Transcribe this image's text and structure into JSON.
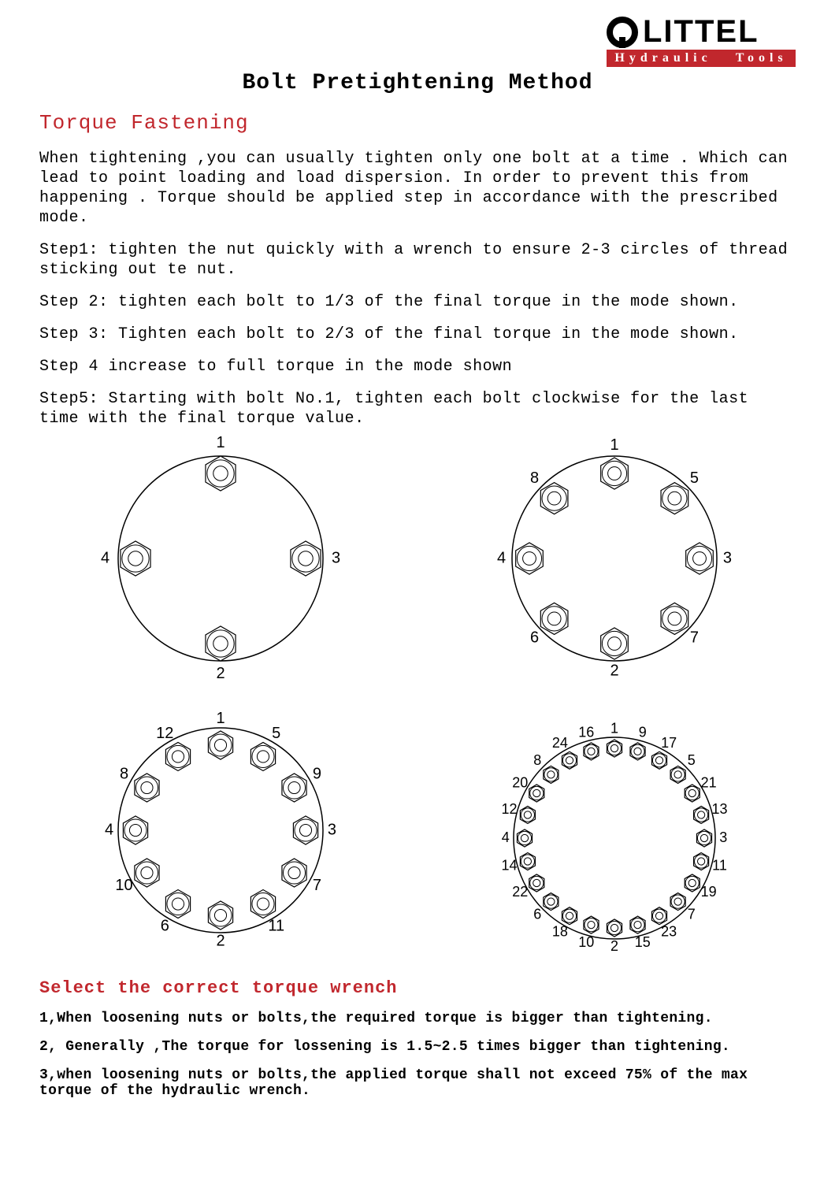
{
  "logo": {
    "brand": "LITTEL",
    "subtitle_left": "Hydraulic",
    "subtitle_right": "Tools",
    "icon_color": "#000000",
    "sub_bg": "#c1272d"
  },
  "title": "Bolt Pretightening Method",
  "section1_title": "Torque Fastening",
  "intro": "When tightening ,you can usually tighten only one bolt at a time . Which can lead to point loading and load dispersion. In order to prevent this from happening . Torque  should be applied step in accordance with the prescribed mode.",
  "steps": [
    "Step1: tighten the nut quickly with a wrench to ensure 2-3 circles of thread sticking out te nut.",
    "Step 2: tighten each bolt to 1/3 of the final torque in the mode shown.",
    "Step 3:  Tighten each bolt to 2/3 of the final torque in the mode shown.",
    "Step 4  increase to full torque in the mode shown",
    "Step5: Starting with bolt No.1, tighten each bolt clockwise for the last time with the final torque value."
  ],
  "section2_title": "Select the  correct torque wrench",
  "notes": [
    "1,When loosening nuts or bolts,the required torque is bigger than tightening.",
    "2, Generally ,The torque for lossening is 1.5~2.5 times bigger than tightening.",
    "3,when loosening nuts or bolts,the applied torque shall not exceed 75% of the max torque of the hydraulic wrench."
  ],
  "flanges": [
    {
      "type": "bolt-circle",
      "svg_size": 310,
      "circle_r": 130,
      "bolt_r": 108,
      "nut_size": 22,
      "label_offset": 30,
      "label_fontsize": 20,
      "stroke": "#000000",
      "bolts": [
        {
          "angle_deg": 90,
          "label": "1"
        },
        {
          "angle_deg": 270,
          "label": "2"
        },
        {
          "angle_deg": 0,
          "label": "3"
        },
        {
          "angle_deg": 180,
          "label": "4"
        }
      ]
    },
    {
      "type": "bolt-circle",
      "svg_size": 310,
      "circle_r": 130,
      "bolt_r": 108,
      "nut_size": 20,
      "label_offset": 28,
      "label_fontsize": 20,
      "stroke": "#000000",
      "bolts": [
        {
          "angle_deg": 90,
          "label": "1"
        },
        {
          "angle_deg": 270,
          "label": "2"
        },
        {
          "angle_deg": 0,
          "label": "3"
        },
        {
          "angle_deg": 180,
          "label": "4"
        },
        {
          "angle_deg": 45,
          "label": "5"
        },
        {
          "angle_deg": 225,
          "label": "6"
        },
        {
          "angle_deg": 315,
          "label": "7"
        },
        {
          "angle_deg": 135,
          "label": "8"
        }
      ]
    },
    {
      "type": "bolt-circle",
      "svg_size": 320,
      "circle_r": 130,
      "bolt_r": 108,
      "nut_size": 18,
      "label_offset": 28,
      "label_fontsize": 20,
      "stroke": "#000000",
      "bolts": [
        {
          "angle_deg": 90,
          "label": "1"
        },
        {
          "angle_deg": 270,
          "label": "2"
        },
        {
          "angle_deg": 0,
          "label": "3"
        },
        {
          "angle_deg": 180,
          "label": "4"
        },
        {
          "angle_deg": 60,
          "label": "5"
        },
        {
          "angle_deg": 240,
          "label": "6"
        },
        {
          "angle_deg": 330,
          "label": "7"
        },
        {
          "angle_deg": 150,
          "label": "8"
        },
        {
          "angle_deg": 30,
          "label": "9"
        },
        {
          "angle_deg": 210,
          "label": "10"
        },
        {
          "angle_deg": 300,
          "label": "11"
        },
        {
          "angle_deg": 120,
          "label": "12"
        }
      ]
    },
    {
      "type": "bolt-circle",
      "svg_size": 340,
      "circle_r": 128,
      "bolt_r": 114,
      "nut_size": 11,
      "label_offset": 24,
      "label_fontsize": 18,
      "stroke": "#000000",
      "bolts": [
        {
          "angle_deg": 90,
          "label": "1"
        },
        {
          "angle_deg": 270,
          "label": "2"
        },
        {
          "angle_deg": 0,
          "label": "3"
        },
        {
          "angle_deg": 180,
          "label": "4"
        },
        {
          "angle_deg": 45,
          "label": "5"
        },
        {
          "angle_deg": 225,
          "label": "6"
        },
        {
          "angle_deg": 315,
          "label": "7"
        },
        {
          "angle_deg": 135,
          "label": "8"
        },
        {
          "angle_deg": 75,
          "label": "9"
        },
        {
          "angle_deg": 255,
          "label": "10"
        },
        {
          "angle_deg": 345,
          "label": "11"
        },
        {
          "angle_deg": 165,
          "label": "12"
        },
        {
          "angle_deg": 15,
          "label": "13"
        },
        {
          "angle_deg": 195,
          "label": "14"
        },
        {
          "angle_deg": 285,
          "label": "15"
        },
        {
          "angle_deg": 105,
          "label": "16"
        },
        {
          "angle_deg": 60,
          "label": "17"
        },
        {
          "angle_deg": 240,
          "label": "18"
        },
        {
          "angle_deg": 330,
          "label": "19"
        },
        {
          "angle_deg": 150,
          "label": "20"
        },
        {
          "angle_deg": 30,
          "label": "21"
        },
        {
          "angle_deg": 210,
          "label": "22"
        },
        {
          "angle_deg": 300,
          "label": "23"
        },
        {
          "angle_deg": 120,
          "label": "24"
        }
      ]
    }
  ]
}
